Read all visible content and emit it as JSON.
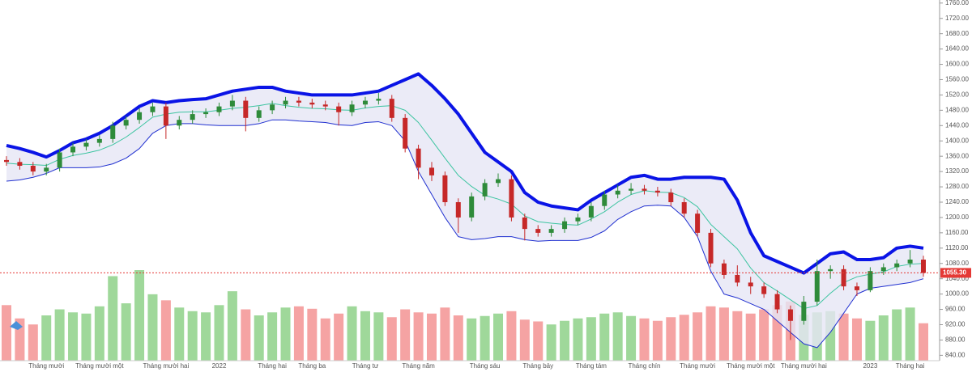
{
  "chart_data": {
    "type": "candlestick",
    "categories": [
      null,
      null,
      null,
      "Tháng mười",
      null,
      null,
      null,
      "Tháng mười một",
      null,
      null,
      null,
      null,
      "Tháng mười hai",
      null,
      null,
      null,
      "2022",
      null,
      null,
      null,
      "Tháng hai",
      null,
      null,
      "Tháng ba",
      null,
      null,
      null,
      "Tháng tư",
      null,
      null,
      null,
      "Tháng năm",
      null,
      null,
      null,
      null,
      "Tháng sáu",
      null,
      null,
      null,
      "Tháng bảy",
      null,
      null,
      null,
      "Tháng tám",
      null,
      null,
      null,
      "Tháng chín",
      null,
      null,
      null,
      "Tháng mười",
      null,
      null,
      null,
      "Tháng mười một",
      null,
      null,
      null,
      "Tháng mười hai",
      null,
      null,
      null,
      null,
      "2023",
      null,
      null,
      "Tháng hai",
      null
    ],
    "open": [
      1350,
      1345,
      1335,
      1320,
      1330,
      1370,
      1385,
      1395,
      1405,
      1440,
      1455,
      1475,
      1490,
      1440,
      1455,
      1470,
      1475,
      1490,
      1505,
      1460,
      1480,
      1495,
      1505,
      1500,
      1495,
      1490,
      1475,
      1495,
      1505,
      1510,
      1460,
      1380,
      1330,
      1310,
      1240,
      1200,
      1255,
      1290,
      1300,
      1200,
      1170,
      1160,
      1170,
      1190,
      1200,
      1230,
      1260,
      1270,
      1275,
      1270,
      1265,
      1240,
      1210,
      1160,
      1080,
      1050,
      1030,
      1020,
      1000,
      960,
      930,
      980,
      1060,
      1065,
      1020,
      1010,
      1060,
      1070,
      1080,
      1090
    ],
    "high": [
      1360,
      1355,
      1345,
      1340,
      1380,
      1395,
      1405,
      1415,
      1450,
      1465,
      1485,
      1500,
      1500,
      1465,
      1480,
      1485,
      1500,
      1520,
      1515,
      1490,
      1505,
      1515,
      1515,
      1510,
      1505,
      1500,
      1505,
      1515,
      1525,
      1520,
      1470,
      1390,
      1345,
      1320,
      1250,
      1265,
      1300,
      1315,
      1310,
      1210,
      1180,
      1180,
      1200,
      1210,
      1240,
      1270,
      1285,
      1290,
      1285,
      1280,
      1275,
      1250,
      1220,
      1170,
      1090,
      1075,
      1045,
      1030,
      1010,
      970,
      995,
      1090,
      1075,
      1075,
      1030,
      1070,
      1080,
      1090,
      1115,
      1100
    ],
    "low": [
      1335,
      1325,
      1310,
      1310,
      1320,
      1360,
      1375,
      1385,
      1395,
      1430,
      1445,
      1465,
      1405,
      1430,
      1445,
      1460,
      1465,
      1480,
      1425,
      1450,
      1470,
      1485,
      1490,
      1485,
      1480,
      1440,
      1465,
      1485,
      1495,
      1450,
      1370,
      1300,
      1295,
      1230,
      1160,
      1190,
      1245,
      1280,
      1190,
      1140,
      1150,
      1150,
      1160,
      1180,
      1190,
      1220,
      1250,
      1260,
      1260,
      1255,
      1230,
      1200,
      1150,
      1070,
      1040,
      1020,
      1000,
      990,
      950,
      880,
      920,
      970,
      1040,
      1010,
      995,
      1005,
      1050,
      1060,
      1070,
      1045
    ],
    "close": [
      1345,
      1335,
      1320,
      1330,
      1370,
      1385,
      1395,
      1405,
      1440,
      1455,
      1475,
      1490,
      1440,
      1455,
      1470,
      1475,
      1490,
      1505,
      1460,
      1480,
      1495,
      1505,
      1500,
      1495,
      1490,
      1475,
      1495,
      1505,
      1510,
      1460,
      1380,
      1330,
      1310,
      1240,
      1200,
      1255,
      1290,
      1300,
      1200,
      1170,
      1160,
      1170,
      1190,
      1200,
      1230,
      1260,
      1270,
      1275,
      1270,
      1265,
      1240,
      1210,
      1160,
      1080,
      1050,
      1030,
      1020,
      1000,
      960,
      930,
      980,
      1060,
      1065,
      1020,
      1010,
      1060,
      1070,
      1080,
      1090,
      1055.3
    ],
    "volume": [
      92,
      70,
      60,
      75,
      85,
      80,
      78,
      90,
      140,
      95,
      150,
      110,
      100,
      88,
      82,
      80,
      92,
      115,
      85,
      75,
      80,
      88,
      90,
      86,
      70,
      78,
      90,
      82,
      80,
      72,
      85,
      80,
      78,
      88,
      75,
      70,
      74,
      78,
      82,
      68,
      65,
      60,
      66,
      70,
      72,
      78,
      80,
      74,
      70,
      66,
      72,
      76,
      80,
      90,
      88,
      82,
      78,
      85,
      92,
      98,
      76,
      80,
      82,
      78,
      70,
      66,
      75,
      85,
      88,
      62
    ],
    "bands": {
      "upper": [
        1388,
        1380,
        1370,
        1358,
        1375,
        1395,
        1405,
        1420,
        1440,
        1465,
        1490,
        1505,
        1500,
        1505,
        1508,
        1510,
        1520,
        1530,
        1535,
        1540,
        1540,
        1530,
        1525,
        1520,
        1520,
        1520,
        1520,
        1525,
        1530,
        1545,
        1560,
        1575,
        1545,
        1510,
        1470,
        1420,
        1370,
        1345,
        1320,
        1265,
        1240,
        1230,
        1225,
        1220,
        1245,
        1265,
        1285,
        1305,
        1310,
        1300,
        1300,
        1305,
        1305,
        1305,
        1300,
        1245,
        1160,
        1100,
        1085,
        1070,
        1055,
        1080,
        1105,
        1110,
        1090,
        1090,
        1095,
        1120,
        1125,
        1120
      ],
      "middle": [
        1342,
        1339,
        1338,
        1336,
        1352,
        1362,
        1368,
        1376,
        1390,
        1410,
        1435,
        1462,
        1470,
        1475,
        1476,
        1476,
        1480,
        1485,
        1488,
        1492,
        1498,
        1492,
        1488,
        1485,
        1484,
        1481,
        1480,
        1486,
        1490,
        1492,
        1480,
        1448,
        1402,
        1355,
        1310,
        1281,
        1258,
        1248,
        1235,
        1204,
        1189,
        1185,
        1182,
        1180,
        1196,
        1215,
        1240,
        1260,
        1270,
        1266,
        1265,
        1252,
        1228,
        1182,
        1150,
        1118,
        1068,
        1030,
        1008,
        985,
        962,
        970,
        1002,
        1030,
        1045,
        1052,
        1058,
        1072,
        1078,
        1080
      ],
      "lower": [
        1295,
        1298,
        1305,
        1315,
        1330,
        1330,
        1330,
        1332,
        1340,
        1355,
        1380,
        1420,
        1440,
        1445,
        1445,
        1442,
        1440,
        1440,
        1440,
        1445,
        1455,
        1455,
        1452,
        1450,
        1448,
        1442,
        1440,
        1448,
        1450,
        1440,
        1400,
        1320,
        1260,
        1200,
        1150,
        1142,
        1145,
        1150,
        1150,
        1142,
        1138,
        1140,
        1140,
        1140,
        1148,
        1165,
        1195,
        1215,
        1230,
        1232,
        1230,
        1200,
        1150,
        1060,
        1000,
        990,
        975,
        960,
        930,
        900,
        870,
        860,
        900,
        950,
        1000,
        1015,
        1020,
        1025,
        1030,
        1040
      ]
    },
    "last_price": {
      "value": 1055.3,
      "label": "1055.30"
    },
    "ylim": [
      826,
      1768
    ],
    "yticks": [
      {
        "value": 840,
        "label": "840.00"
      },
      {
        "value": 880,
        "label": "880.00"
      },
      {
        "value": 920,
        "label": "920.00"
      },
      {
        "value": 960,
        "label": "960.00"
      },
      {
        "value": 1000,
        "label": "1000.00"
      },
      {
        "value": 1040,
        "label": "1040.00"
      },
      {
        "value": 1080,
        "label": "1080.00"
      },
      {
        "value": 1120,
        "label": "1120.00"
      },
      {
        "value": 1160,
        "label": "1160.00"
      },
      {
        "value": 1200,
        "label": "1200.00"
      },
      {
        "value": 1240,
        "label": "1240.00"
      },
      {
        "value": 1280,
        "label": "1280.00"
      },
      {
        "value": 1320,
        "label": "1320.00"
      },
      {
        "value": 1360,
        "label": "1360.00"
      },
      {
        "value": 1400,
        "label": "1400.00"
      },
      {
        "value": 1440,
        "label": "1440.00"
      },
      {
        "value": 1480,
        "label": "1480.00"
      },
      {
        "value": 1520,
        "label": "1520.00"
      },
      {
        "value": 1560,
        "label": "1560.00"
      },
      {
        "value": 1600,
        "label": "1600.00"
      },
      {
        "value": 1640,
        "label": "1640.00"
      },
      {
        "value": 1680,
        "label": "1680.00"
      },
      {
        "value": 1720,
        "label": "1720.00"
      },
      {
        "value": 1760,
        "label": "1760.00"
      }
    ],
    "grid": false,
    "colors": {
      "up": "#2e8b3a",
      "down": "#c62828",
      "volume_up": "#9fd89a",
      "volume_down": "#f5a3a3",
      "upper": "#0a14e6",
      "middle": "#3cc4a0",
      "lower": "#2030d0",
      "band_fill": "#e6e6f5",
      "last_price": "#e53935"
    }
  }
}
